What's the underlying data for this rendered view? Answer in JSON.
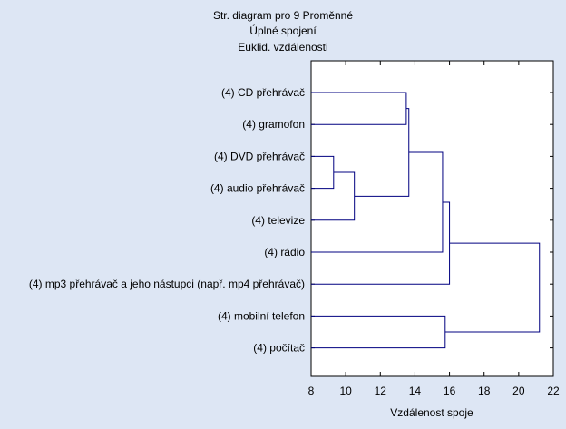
{
  "chart_data": {
    "type": "dendrogram",
    "title": [
      "Str. diagram pro 9   Proměnné",
      "Úplné spojení",
      "Euklid. vzdálenosti"
    ],
    "xlabel": "Vzdálenost spoje",
    "xlim": [
      8,
      22
    ],
    "x_ticks": [
      8,
      10,
      12,
      14,
      16,
      18,
      20,
      22
    ],
    "grid": false,
    "leaves": [
      "(4) CD přehrávač",
      "(4) gramofon",
      "(4) DVD přehrávač",
      "(4) audio přehrávač",
      "(4) televize",
      "(4) rádio",
      "(4) mp3 přehrávač a jeho nástupci (např. mp4 přehrávač)",
      "(4) mobilní telefon",
      "(4) počítač"
    ],
    "merges": [
      {
        "id": "m1",
        "left": "l2",
        "right": "l3",
        "distance": 9.3
      },
      {
        "id": "m2",
        "left": "m1",
        "right": "l4",
        "distance": 10.5
      },
      {
        "id": "m3",
        "left": "l0",
        "right": "l1",
        "distance": 13.5
      },
      {
        "id": "m4",
        "left": "m3",
        "right": "m2",
        "distance": 13.65
      },
      {
        "id": "m5",
        "left": "m4",
        "right": "l5",
        "distance": 15.6
      },
      {
        "id": "m6",
        "left": "m5",
        "right": "l6",
        "distance": 16.0
      },
      {
        "id": "m7",
        "left": "l7",
        "right": "l8",
        "distance": 15.75
      },
      {
        "id": "m8",
        "left": "m6",
        "right": "m7",
        "distance": 21.2
      }
    ],
    "colors": {
      "background": "#dde6f4",
      "plot_background": "#ffffff",
      "lines": "#000080",
      "frame": "#000000"
    }
  }
}
